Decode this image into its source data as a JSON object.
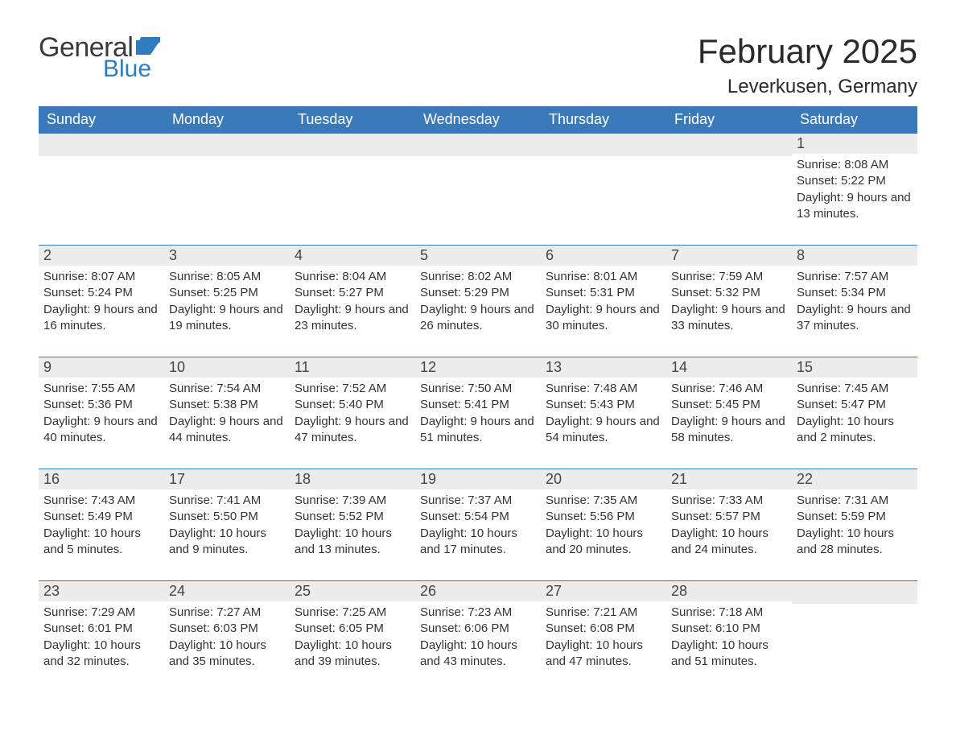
{
  "logo": {
    "general": "General",
    "blue": "Blue",
    "flag_color": "#2f7bbf"
  },
  "title": "February 2025",
  "location": "Leverkusen, Germany",
  "header_bg": "#3a7ab8",
  "header_text": "#ffffff",
  "daynum_bg": "#ececec",
  "divider_color": "#3a7ab8",
  "days_of_week": [
    "Sunday",
    "Monday",
    "Tuesday",
    "Wednesday",
    "Thursday",
    "Friday",
    "Saturday"
  ],
  "weeks": [
    [
      null,
      null,
      null,
      null,
      null,
      null,
      {
        "n": "1",
        "sunrise": "8:08 AM",
        "sunset": "5:22 PM",
        "daylight": "9 hours and 13 minutes."
      }
    ],
    [
      {
        "n": "2",
        "sunrise": "8:07 AM",
        "sunset": "5:24 PM",
        "daylight": "9 hours and 16 minutes."
      },
      {
        "n": "3",
        "sunrise": "8:05 AM",
        "sunset": "5:25 PM",
        "daylight": "9 hours and 19 minutes."
      },
      {
        "n": "4",
        "sunrise": "8:04 AM",
        "sunset": "5:27 PM",
        "daylight": "9 hours and 23 minutes."
      },
      {
        "n": "5",
        "sunrise": "8:02 AM",
        "sunset": "5:29 PM",
        "daylight": "9 hours and 26 minutes."
      },
      {
        "n": "6",
        "sunrise": "8:01 AM",
        "sunset": "5:31 PM",
        "daylight": "9 hours and 30 minutes."
      },
      {
        "n": "7",
        "sunrise": "7:59 AM",
        "sunset": "5:32 PM",
        "daylight": "9 hours and 33 minutes."
      },
      {
        "n": "8",
        "sunrise": "7:57 AM",
        "sunset": "5:34 PM",
        "daylight": "9 hours and 37 minutes."
      }
    ],
    [
      {
        "n": "9",
        "sunrise": "7:55 AM",
        "sunset": "5:36 PM",
        "daylight": "9 hours and 40 minutes."
      },
      {
        "n": "10",
        "sunrise": "7:54 AM",
        "sunset": "5:38 PM",
        "daylight": "9 hours and 44 minutes."
      },
      {
        "n": "11",
        "sunrise": "7:52 AM",
        "sunset": "5:40 PM",
        "daylight": "9 hours and 47 minutes."
      },
      {
        "n": "12",
        "sunrise": "7:50 AM",
        "sunset": "5:41 PM",
        "daylight": "9 hours and 51 minutes."
      },
      {
        "n": "13",
        "sunrise": "7:48 AM",
        "sunset": "5:43 PM",
        "daylight": "9 hours and 54 minutes."
      },
      {
        "n": "14",
        "sunrise": "7:46 AM",
        "sunset": "5:45 PM",
        "daylight": "9 hours and 58 minutes."
      },
      {
        "n": "15",
        "sunrise": "7:45 AM",
        "sunset": "5:47 PM",
        "daylight": "10 hours and 2 minutes."
      }
    ],
    [
      {
        "n": "16",
        "sunrise": "7:43 AM",
        "sunset": "5:49 PM",
        "daylight": "10 hours and 5 minutes."
      },
      {
        "n": "17",
        "sunrise": "7:41 AM",
        "sunset": "5:50 PM",
        "daylight": "10 hours and 9 minutes."
      },
      {
        "n": "18",
        "sunrise": "7:39 AM",
        "sunset": "5:52 PM",
        "daylight": "10 hours and 13 minutes."
      },
      {
        "n": "19",
        "sunrise": "7:37 AM",
        "sunset": "5:54 PM",
        "daylight": "10 hours and 17 minutes."
      },
      {
        "n": "20",
        "sunrise": "7:35 AM",
        "sunset": "5:56 PM",
        "daylight": "10 hours and 20 minutes."
      },
      {
        "n": "21",
        "sunrise": "7:33 AM",
        "sunset": "5:57 PM",
        "daylight": "10 hours and 24 minutes."
      },
      {
        "n": "22",
        "sunrise": "7:31 AM",
        "sunset": "5:59 PM",
        "daylight": "10 hours and 28 minutes."
      }
    ],
    [
      {
        "n": "23",
        "sunrise": "7:29 AM",
        "sunset": "6:01 PM",
        "daylight": "10 hours and 32 minutes."
      },
      {
        "n": "24",
        "sunrise": "7:27 AM",
        "sunset": "6:03 PM",
        "daylight": "10 hours and 35 minutes."
      },
      {
        "n": "25",
        "sunrise": "7:25 AM",
        "sunset": "6:05 PM",
        "daylight": "10 hours and 39 minutes."
      },
      {
        "n": "26",
        "sunrise": "7:23 AM",
        "sunset": "6:06 PM",
        "daylight": "10 hours and 43 minutes."
      },
      {
        "n": "27",
        "sunrise": "7:21 AM",
        "sunset": "6:08 PM",
        "daylight": "10 hours and 47 minutes."
      },
      {
        "n": "28",
        "sunrise": "7:18 AM",
        "sunset": "6:10 PM",
        "daylight": "10 hours and 51 minutes."
      },
      null
    ]
  ],
  "labels": {
    "sunrise": "Sunrise: ",
    "sunset": "Sunset: ",
    "daylight": "Daylight: "
  }
}
